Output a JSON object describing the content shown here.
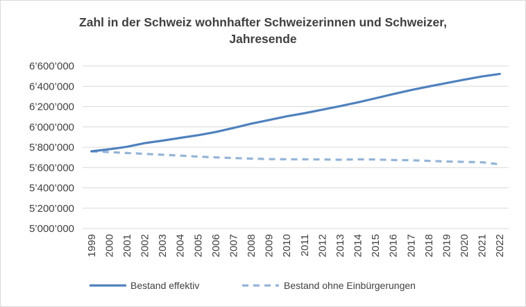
{
  "chart_data": {
    "type": "line",
    "title_lines": [
      "Zahl in der Schweiz wohnhafter Schweizerinnen und Schweizer,",
      "Jahresende"
    ],
    "x": [
      "1999",
      "2000",
      "2001",
      "2002",
      "2003",
      "2004",
      "2005",
      "2006",
      "2007",
      "2008",
      "2009",
      "2010",
      "2011",
      "2012",
      "2013",
      "2014",
      "2015",
      "2016",
      "2017",
      "2018",
      "2019",
      "2020",
      "2021",
      "2022"
    ],
    "ylim": [
      5000000,
      6600000
    ],
    "yticks": [
      5000000,
      5200000,
      5400000,
      5600000,
      5800000,
      6000000,
      6200000,
      6400000,
      6600000
    ],
    "ytick_labels": [
      "5’000’000",
      "5’200’000",
      "5’400’000",
      "5’600’000",
      "5’800’000",
      "6’000’000",
      "6’200’000",
      "6’400’000",
      "6’600’000"
    ],
    "grid": true,
    "legend_position": "bottom",
    "series": [
      {
        "name": "Bestand effektiv",
        "color": "#4f81bd",
        "style": "solid",
        "values": [
          5760000,
          5780000,
          5805000,
          5840000,
          5865000,
          5892000,
          5918000,
          5950000,
          5990000,
          6032000,
          6068000,
          6105000,
          6135000,
          6170000,
          6205000,
          6242000,
          6282000,
          6324000,
          6363000,
          6398000,
          6432000,
          6465000,
          6497000,
          6522000
        ]
      },
      {
        "name": "Bestand ohne Einbürgerungen",
        "color": "#95b3d7",
        "style": "dashed",
        "values": [
          5760000,
          5752000,
          5743000,
          5735000,
          5726000,
          5718000,
          5708000,
          5700000,
          5694000,
          5688000,
          5683000,
          5682000,
          5681000,
          5680000,
          5677000,
          5681000,
          5680000,
          5674000,
          5672000,
          5666000,
          5660000,
          5656000,
          5652000,
          5632000
        ]
      }
    ]
  }
}
